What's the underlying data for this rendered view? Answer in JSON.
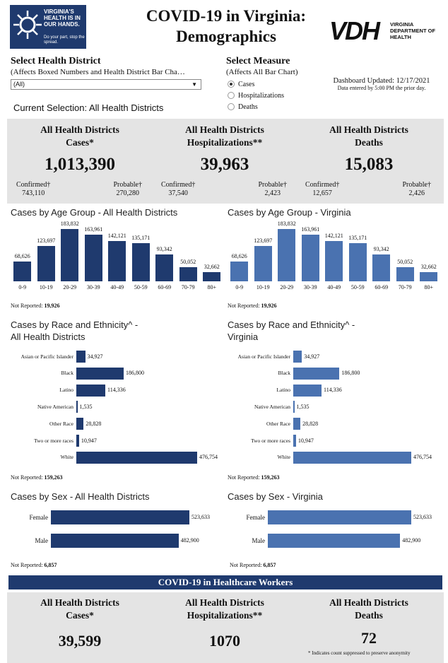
{
  "header": {
    "logo_text": "VIRGINIA'S HEALTH IS IN OUR HANDS.",
    "logo_sub": "Do your part, stop the spread.",
    "title_line1": "COVID-19 in Virginia:",
    "title_line2": "Demographics",
    "vdh_mark": "VDH",
    "vdh_name": "VIRGINIA DEPARTMENT OF HEALTH"
  },
  "filters": {
    "district_label": "Select Health District",
    "district_note": "(Affects Boxed Numbers and Health District Bar Cha…",
    "district_value": "(All)",
    "measure_label": "Select Measure",
    "measure_note": "(Affects All Bar Chart)",
    "measures": [
      "Cases",
      "Hospitalizations",
      "Deaths"
    ],
    "measure_selected": "Cases",
    "current_selection": "Current Selection: All Health Districts",
    "updated": "Dashboard Updated: 12/17/2021",
    "updated_note": "Data entered by 5:00 PM the prior day."
  },
  "summary": [
    {
      "title1": "All Health Districts",
      "title2": "Cases*",
      "total": "1,013,390",
      "confirmed_label": "Confirmed†",
      "confirmed": "743,110",
      "probable_label": "Probable†",
      "probable": "270,280"
    },
    {
      "title1": "All Health Districts",
      "title2": "Hospitalizations**",
      "total": "39,963",
      "confirmed_label": "Confirmed†",
      "confirmed": "37,540",
      "probable_label": "Probable†",
      "probable": "2,423"
    },
    {
      "title1": "All Health Districts",
      "title2": "Deaths",
      "total": "15,083",
      "confirmed_label": "Confirmed†",
      "confirmed": "12,657",
      "probable_label": "Probable†",
      "probable": "2,426"
    }
  ],
  "age_left": {
    "title": "Cases by Age Group - All Health Districts",
    "not_reported_label": "Not Reported:",
    "not_reported": "19,926"
  },
  "age_right": {
    "title": "Cases by Age Group - Virginia",
    "not_reported_label": "Not Reported:",
    "not_reported": "19,926"
  },
  "race_left": {
    "title1": "Cases by Race and Ethnicity^ -",
    "title2": "All Health Districts",
    "not_reported_label": "Not Reported:",
    "not_reported": "159,263"
  },
  "race_right": {
    "title1": "Cases by Race and Ethnicity^ -",
    "title2": "Virginia",
    "not_reported_label": "Not Reported:",
    "not_reported": "159,263"
  },
  "sex_left": {
    "title": "Cases by Sex - All Health Districts",
    "not_reported_label": "Not Reported:",
    "not_reported": "6,857"
  },
  "sex_right": {
    "title": "Cases by Sex - Virginia",
    "not_reported_label": "Not Reported:",
    "not_reported": "6,857"
  },
  "hcw": {
    "banner": "COVID-19 in Healthcare Workers",
    "stats": [
      {
        "title1": "All Health Districts",
        "title2": "Cases*",
        "total": "39,599"
      },
      {
        "title1": "All Health Districts",
        "title2": "Hospitalizations**",
        "total": "1070"
      },
      {
        "title1": "All Health Districts",
        "title2": "Deaths",
        "total": "72"
      }
    ],
    "footnote": "* Indicates count suppressed to preserve anonymity"
  },
  "colors": {
    "dark_bar": "#1f3a6e",
    "light_bar": "#4a72b0",
    "panel": "#e4e4e4"
  },
  "chart_data": [
    {
      "type": "bar",
      "id": "age_left",
      "categories": [
        "0-9",
        "10-19",
        "20-29",
        "30-39",
        "40-49",
        "50-59",
        "60-69",
        "70-79",
        "80+"
      ],
      "values": [
        68626,
        123697,
        183832,
        163961,
        142121,
        135171,
        93342,
        50052,
        32662
      ],
      "labels": [
        "68,626",
        "123,697",
        "183,832",
        "163,961",
        "142,121",
        "135,171",
        "93,342",
        "50,052",
        "32,662"
      ]
    },
    {
      "type": "bar",
      "id": "age_right",
      "categories": [
        "0-9",
        "10-19",
        "20-29",
        "30-39",
        "40-49",
        "50-59",
        "60-69",
        "70-79",
        "80+"
      ],
      "values": [
        68626,
        123697,
        183832,
        163961,
        142121,
        135171,
        93342,
        50052,
        32662
      ],
      "labels": [
        "68,626",
        "123,697",
        "183,832",
        "163,961",
        "142,121",
        "135,171",
        "93,342",
        "50,052",
        "32,662"
      ]
    },
    {
      "type": "bar",
      "id": "race_left",
      "orientation": "horizontal",
      "categories": [
        "Asian or Pacific Islander",
        "Black",
        "Latino",
        "Native American",
        "Other Race",
        "Two or more races",
        "White"
      ],
      "values": [
        34927,
        186800,
        114336,
        1535,
        28828,
        10947,
        476754
      ],
      "labels": [
        "34,927",
        "186,800",
        "114,336",
        "1,535",
        "28,828",
        "10,947",
        "476,754"
      ]
    },
    {
      "type": "bar",
      "id": "race_right",
      "orientation": "horizontal",
      "categories": [
        "Asian or Pacific Islander",
        "Black",
        "Latino",
        "Native American",
        "Other Race",
        "Two or more races",
        "White"
      ],
      "values": [
        34927,
        186800,
        114336,
        1535,
        28828,
        10947,
        476754
      ],
      "labels": [
        "34,927",
        "186,800",
        "114,336",
        "1,535",
        "28,828",
        "10,947",
        "476,754"
      ]
    },
    {
      "type": "bar",
      "id": "sex_left",
      "orientation": "horizontal",
      "categories": [
        "Female",
        "Male"
      ],
      "values": [
        523633,
        482900
      ],
      "labels": [
        "523,633",
        "482,900"
      ]
    },
    {
      "type": "bar",
      "id": "sex_right",
      "orientation": "horizontal",
      "categories": [
        "Female",
        "Male"
      ],
      "values": [
        523633,
        482900
      ],
      "labels": [
        "523,633",
        "482,900"
      ]
    }
  ]
}
